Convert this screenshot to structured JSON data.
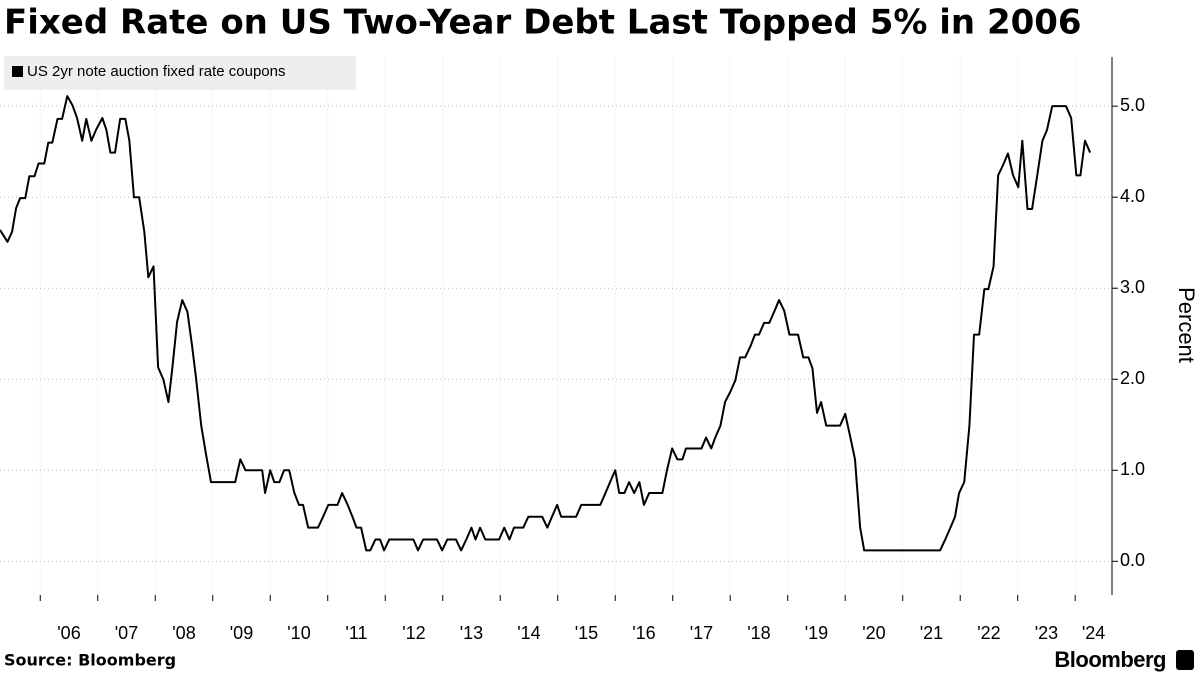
{
  "chart_data": {
    "type": "line",
    "title": "Fixed Rate on US Two-Year Debt Last Topped 5% in 2006",
    "y_label": "Percent",
    "source": "Source: Bloomberg",
    "brand": "Bloomberg",
    "grid": true,
    "legend_position": "top-left",
    "xlim": [
      2005.3,
      2024.64
    ],
    "ylim": [
      -0.37,
      5.54
    ],
    "xticks": [
      {
        "value": 2006,
        "label": "'06"
      },
      {
        "value": 2007,
        "label": "'07"
      },
      {
        "value": 2008,
        "label": "'08"
      },
      {
        "value": 2009,
        "label": "'09"
      },
      {
        "value": 2010,
        "label": "'10"
      },
      {
        "value": 2011,
        "label": "'11"
      },
      {
        "value": 2012,
        "label": "'12"
      },
      {
        "value": 2013,
        "label": "'13"
      },
      {
        "value": 2014,
        "label": "'14"
      },
      {
        "value": 2015,
        "label": "'15"
      },
      {
        "value": 2016,
        "label": "'16"
      },
      {
        "value": 2017,
        "label": "'17"
      },
      {
        "value": 2018,
        "label": "'18"
      },
      {
        "value": 2019,
        "label": "'19"
      },
      {
        "value": 2020,
        "label": "'20"
      },
      {
        "value": 2021,
        "label": "'21"
      },
      {
        "value": 2022,
        "label": "'22"
      },
      {
        "value": 2023,
        "label": "'23"
      },
      {
        "value": 2024,
        "label": "'24"
      }
    ],
    "yticks": [
      {
        "value": 0,
        "label": "0.0"
      },
      {
        "value": 1,
        "label": "1.0"
      },
      {
        "value": 2,
        "label": "2.0"
      },
      {
        "value": 3,
        "label": "3.0"
      },
      {
        "value": 4,
        "label": "4.0"
      },
      {
        "value": 5,
        "label": "5.0"
      }
    ],
    "x": [
      2005.3,
      2005.43,
      2005.51,
      2005.58,
      2005.65,
      2005.74,
      2005.81,
      2005.9,
      2005.97,
      2006.07,
      2006.14,
      2006.21,
      2006.3,
      2006.38,
      2006.47,
      2006.56,
      2006.64,
      2006.73,
      2006.8,
      2006.89,
      2006.97,
      2007.08,
      2007.15,
      2007.22,
      2007.3,
      2007.39,
      2007.48,
      2007.55,
      2007.63,
      2007.72,
      2007.81,
      2007.88,
      2007.97,
      2008.05,
      2008.14,
      2008.23,
      2008.3,
      2008.38,
      2008.47,
      2008.56,
      2008.64,
      2008.71,
      2008.8,
      2008.89,
      2008.97,
      2009.39,
      2009.48,
      2009.57,
      2009.86,
      2009.91,
      2010.0,
      2010.07,
      2010.16,
      2010.24,
      2010.33,
      2010.42,
      2010.5,
      2010.57,
      2010.66,
      2010.83,
      2010.92,
      2011.01,
      2011.17,
      2011.25,
      2011.34,
      2011.43,
      2011.5,
      2011.58,
      2011.67,
      2011.74,
      2011.83,
      2011.91,
      2011.98,
      2012.07,
      2012.49,
      2012.57,
      2012.66,
      2012.9,
      2012.99,
      2013.08,
      2013.23,
      2013.32,
      2013.41,
      2013.5,
      2013.57,
      2013.65,
      2013.74,
      2013.98,
      2014.07,
      2014.16,
      2014.24,
      2014.4,
      2014.49,
      2014.73,
      2014.82,
      2014.9,
      2014.99,
      2015.06,
      2015.32,
      2015.41,
      2015.74,
      2015.83,
      2015.91,
      2016.0,
      2016.07,
      2016.16,
      2016.24,
      2016.33,
      2016.42,
      2016.5,
      2016.59,
      2016.82,
      2016.9,
      2016.99,
      2017.08,
      2017.17,
      2017.23,
      2017.5,
      2017.58,
      2017.67,
      2017.74,
      2017.83,
      2017.91,
      2018.0,
      2018.09,
      2018.17,
      2018.26,
      2018.35,
      2018.43,
      2018.5,
      2018.59,
      2018.68,
      2018.77,
      2018.85,
      2018.94,
      2019.03,
      2019.18,
      2019.27,
      2019.36,
      2019.43,
      2019.51,
      2019.58,
      2019.67,
      2019.91,
      2020.0,
      2020.09,
      2020.17,
      2020.26,
      2020.33,
      2021.65,
      2021.74,
      2021.83,
      2021.91,
      2021.98,
      2022.07,
      2022.16,
      2022.24,
      2022.33,
      2022.42,
      2022.49,
      2022.58,
      2022.66,
      2022.75,
      2022.83,
      2022.92,
      2023.01,
      2023.08,
      2023.17,
      2023.25,
      2023.34,
      2023.43,
      2023.51,
      2023.6,
      2023.84,
      2023.93,
      2024.02,
      2024.09,
      2024.17,
      2024.26
    ],
    "series": [
      {
        "name": "US 2yr note auction fixed rate coupons",
        "color": "#000000",
        "values": [
          3.64,
          3.51,
          3.62,
          3.88,
          3.99,
          3.99,
          4.23,
          4.23,
          4.37,
          4.37,
          4.6,
          4.6,
          4.86,
          4.86,
          5.11,
          5.01,
          4.87,
          4.62,
          4.86,
          4.62,
          4.74,
          4.87,
          4.74,
          4.49,
          4.49,
          4.86,
          4.86,
          4.62,
          4.0,
          4.0,
          3.62,
          3.12,
          3.24,
          2.13,
          2.0,
          1.75,
          2.14,
          2.63,
          2.87,
          2.74,
          2.37,
          2.01,
          1.49,
          1.15,
          0.87,
          0.87,
          1.12,
          1.0,
          1.0,
          0.75,
          1.0,
          0.87,
          0.87,
          1.0,
          1.0,
          0.75,
          0.62,
          0.62,
          0.37,
          0.37,
          0.49,
          0.62,
          0.62,
          0.75,
          0.63,
          0.49,
          0.37,
          0.37,
          0.12,
          0.12,
          0.24,
          0.24,
          0.12,
          0.24,
          0.24,
          0.12,
          0.24,
          0.24,
          0.12,
          0.24,
          0.24,
          0.12,
          0.24,
          0.37,
          0.24,
          0.37,
          0.24,
          0.24,
          0.37,
          0.24,
          0.37,
          0.37,
          0.49,
          0.49,
          0.37,
          0.49,
          0.62,
          0.49,
          0.49,
          0.62,
          0.62,
          0.75,
          0.87,
          1.0,
          0.75,
          0.75,
          0.87,
          0.75,
          0.87,
          0.62,
          0.75,
          0.75,
          1.0,
          1.24,
          1.12,
          1.12,
          1.24,
          1.24,
          1.36,
          1.24,
          1.36,
          1.49,
          1.75,
          1.86,
          1.99,
          2.24,
          2.24,
          2.36,
          2.49,
          2.49,
          2.62,
          2.62,
          2.75,
          2.87,
          2.75,
          2.49,
          2.49,
          2.24,
          2.24,
          2.12,
          1.63,
          1.75,
          1.49,
          1.49,
          1.62,
          1.36,
          1.12,
          0.37,
          0.12,
          0.12,
          0.24,
          0.37,
          0.49,
          0.75,
          0.87,
          1.49,
          2.49,
          2.49,
          2.99,
          2.99,
          3.24,
          4.24,
          4.36,
          4.48,
          4.24,
          4.11,
          4.62,
          3.87,
          3.87,
          4.24,
          4.62,
          4.74,
          5.0,
          5.0,
          4.87,
          4.24,
          4.24,
          4.62,
          4.49
        ]
      }
    ]
  }
}
